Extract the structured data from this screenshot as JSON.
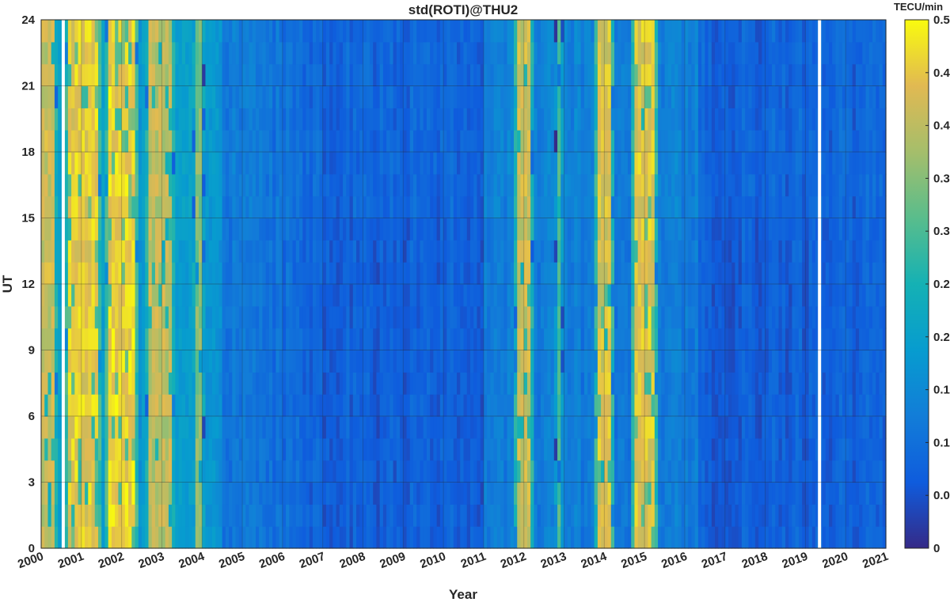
{
  "chart_data": {
    "type": "heatmap",
    "title": "std(ROTI)@THU2",
    "xlabel": "Year",
    "ylabel": "UT",
    "xlim": [
      2000,
      2021
    ],
    "ylim": [
      0,
      24
    ],
    "x_ticks": [
      "2000",
      "2001",
      "2002",
      "2003",
      "2004",
      "2005",
      "2006",
      "2007",
      "2008",
      "2009",
      "2010",
      "2011",
      "2012",
      "2013",
      "2014",
      "2015",
      "2016",
      "2017",
      "2018",
      "2019",
      "2020",
      "2021"
    ],
    "y_ticks": [
      "0",
      "3",
      "6",
      "9",
      "12",
      "15",
      "18",
      "21",
      "24"
    ],
    "grid": true,
    "colormap": "parula",
    "colorbar": {
      "label": "TECU/min",
      "range": [
        0,
        0.5
      ],
      "ticks": [
        "0",
        "0.05",
        "0.1",
        "0.15",
        "0.2",
        "0.25",
        "0.3",
        "0.35",
        "0.4",
        "0.45",
        "0.5"
      ]
    },
    "data_gaps_year": [
      2000.55,
      2019.35
    ],
    "high_activity_bands": [
      {
        "start": 2000.0,
        "end": 2000.35,
        "value": 0.45
      },
      {
        "start": 2000.65,
        "end": 2001.4,
        "value": 0.49
      },
      {
        "start": 2001.7,
        "end": 2002.3,
        "value": 0.5
      },
      {
        "start": 2002.7,
        "end": 2003.25,
        "value": 0.44
      },
      {
        "start": 2003.8,
        "end": 2004.0,
        "value": 0.38
      },
      {
        "start": 2011.85,
        "end": 2012.2,
        "value": 0.45
      },
      {
        "start": 2012.8,
        "end": 2012.95,
        "value": 0.33
      },
      {
        "start": 2013.85,
        "end": 2014.2,
        "value": 0.47
      },
      {
        "start": 2014.75,
        "end": 2015.25,
        "value": 0.48
      }
    ],
    "baseline_levels": [
      {
        "period": "2000-2004",
        "value": 0.18
      },
      {
        "period": "2005-2007",
        "value": 0.12
      },
      {
        "period": "2007-2011",
        "value": 0.07
      },
      {
        "period": "2011-2016",
        "value": 0.13
      },
      {
        "period": "2016-2021",
        "value": 0.07
      }
    ]
  }
}
